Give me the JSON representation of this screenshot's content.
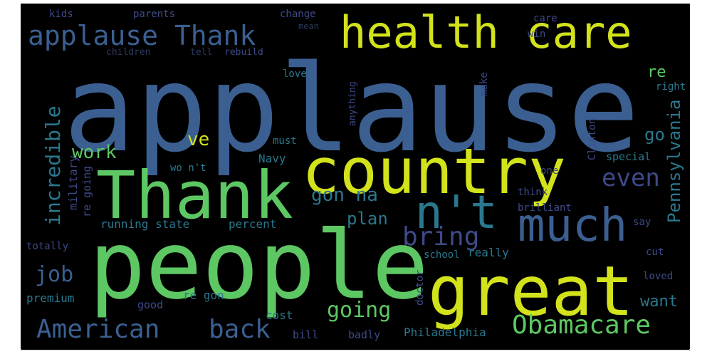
{
  "colors": {
    "background": "#000000",
    "yellow": "#d2e21b",
    "green": "#5dc863",
    "teal": "#2a788e",
    "blue": "#3b5f91",
    "dark": "#3e4a89",
    "dim": "#2d3a5e"
  },
  "words": [
    {
      "text": "applause",
      "color": "blue",
      "size": 168
    },
    {
      "text": "people",
      "color": "green",
      "size": 132
    },
    {
      "text": "country",
      "color": "yellow",
      "size": 88
    },
    {
      "text": "Thank",
      "color": "green",
      "size": 92
    },
    {
      "text": "great",
      "color": "yellow",
      "size": 96
    },
    {
      "text": "health care",
      "color": "yellow",
      "size": 62
    },
    {
      "text": "much",
      "color": "blue",
      "size": 64
    },
    {
      "text": "n't",
      "color": "teal",
      "size": 64
    },
    {
      "text": "applause Thank",
      "color": "blue",
      "size": 38
    },
    {
      "text": "American",
      "color": "blue",
      "size": 36
    },
    {
      "text": "back",
      "color": "blue",
      "size": 36
    },
    {
      "text": "Obamacare",
      "color": "green",
      "size": 36
    },
    {
      "text": "going",
      "color": "green",
      "size": 30
    },
    {
      "text": "bring",
      "color": "dark",
      "size": 36
    },
    {
      "text": "even",
      "color": "dark",
      "size": 34
    },
    {
      "text": "Pennsylvania",
      "color": "teal",
      "size": 24
    },
    {
      "text": "incredible",
      "color": "teal",
      "size": 28
    },
    {
      "text": "job",
      "color": "blue",
      "size": 30
    },
    {
      "text": "work",
      "color": "green",
      "size": 26
    },
    {
      "text": "ve",
      "color": "yellow",
      "size": 26
    },
    {
      "text": "gon na",
      "color": "teal",
      "size": 26
    },
    {
      "text": "plan",
      "color": "teal",
      "size": 24
    },
    {
      "text": "go",
      "color": "teal",
      "size": 24
    },
    {
      "text": "re",
      "color": "green",
      "size": 22
    },
    {
      "text": "want",
      "color": "teal",
      "size": 22
    },
    {
      "text": "military",
      "color": "dark",
      "size": 16
    },
    {
      "text": "re going",
      "color": "dark",
      "size": 15
    },
    {
      "text": "running state",
      "color": "teal",
      "size": 16
    },
    {
      "text": "percent",
      "color": "teal",
      "size": 16
    },
    {
      "text": "totally",
      "color": "dark",
      "size": 14
    },
    {
      "text": "premium",
      "color": "teal",
      "size": 16
    },
    {
      "text": "good",
      "color": "dark",
      "size": 15
    },
    {
      "text": "re gon",
      "color": "teal",
      "size": 16
    },
    {
      "text": "cost",
      "color": "teal",
      "size": 16
    },
    {
      "text": "bill",
      "color": "dark",
      "size": 15
    },
    {
      "text": "badly",
      "color": "dark",
      "size": 15
    },
    {
      "text": "Philadelphia",
      "color": "teal",
      "size": 16
    },
    {
      "text": "doctor",
      "color": "dark",
      "size": 14
    },
    {
      "text": "school",
      "color": "teal",
      "size": 14
    },
    {
      "text": "really",
      "color": "teal",
      "size": 16
    },
    {
      "text": "loved",
      "color": "dark",
      "size": 14
    },
    {
      "text": "cut",
      "color": "dark",
      "size": 14
    },
    {
      "text": "special",
      "color": "teal",
      "size": 15
    },
    {
      "text": "brilliant",
      "color": "dark",
      "size": 14
    },
    {
      "text": "think",
      "color": "dark",
      "size": 14
    },
    {
      "text": "say",
      "color": "dark",
      "size": 14
    },
    {
      "text": "one",
      "color": "dark",
      "size": 14
    },
    {
      "text": "right",
      "color": "teal",
      "size": 14
    },
    {
      "text": "love",
      "color": "teal",
      "size": 14
    },
    {
      "text": "must",
      "color": "teal",
      "size": 14
    },
    {
      "text": "Navy",
      "color": "teal",
      "size": 16
    },
    {
      "text": "wo n't",
      "color": "teal",
      "size": 14
    },
    {
      "text": "make",
      "color": "dark",
      "size": 14
    },
    {
      "text": "anything",
      "color": "dark",
      "size": 13
    },
    {
      "text": "Clinton",
      "color": "dark",
      "size": 14
    },
    {
      "text": "kids",
      "color": "dark",
      "size": 14
    },
    {
      "text": "parents",
      "color": "dark",
      "size": 14
    },
    {
      "text": "change",
      "color": "dark",
      "size": 14
    },
    {
      "text": "mean",
      "color": "dim",
      "size": 12
    },
    {
      "text": "win",
      "color": "dark",
      "size": 14
    },
    {
      "text": "care",
      "color": "dark",
      "size": 14
    },
    {
      "text": "children",
      "color": "dim",
      "size": 13
    },
    {
      "text": "tell",
      "color": "dim",
      "size": 13
    },
    {
      "text": "rebuild",
      "color": "dark",
      "size": 13
    }
  ]
}
